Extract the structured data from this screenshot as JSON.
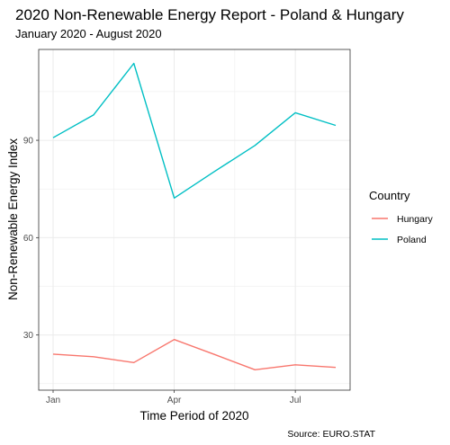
{
  "chart_data": {
    "type": "line",
    "title": "2020 Non-Renewable Energy Report - Poland & Hungary",
    "subtitle": "January 2020 - August 2020",
    "xlabel": "Time Period of 2020",
    "ylabel": "Non-Renewable Energy Index",
    "caption": "Source: EURO.STAT",
    "x": [
      "2020-01",
      "2020-02",
      "2020-03",
      "2020-04",
      "2020-05",
      "2020-06",
      "2020-07",
      "2020-08"
    ],
    "x_ticks": [
      "Jan",
      "Apr",
      "Jul"
    ],
    "y_ticks": [
      30,
      60,
      90
    ],
    "ylim": [
      13,
      118
    ],
    "grid": true,
    "legend": {
      "title": "Country",
      "position": "right"
    },
    "series": [
      {
        "name": "Hungary",
        "color": "#F8766D",
        "values": [
          24.1,
          23.3,
          21.5,
          28.6,
          24.0,
          19.3,
          20.8,
          20.0
        ]
      },
      {
        "name": "Poland",
        "color": "#00BFC4",
        "values": [
          90.8,
          97.8,
          113.7,
          72.2,
          80.4,
          88.4,
          98.5,
          94.6
        ]
      }
    ]
  }
}
